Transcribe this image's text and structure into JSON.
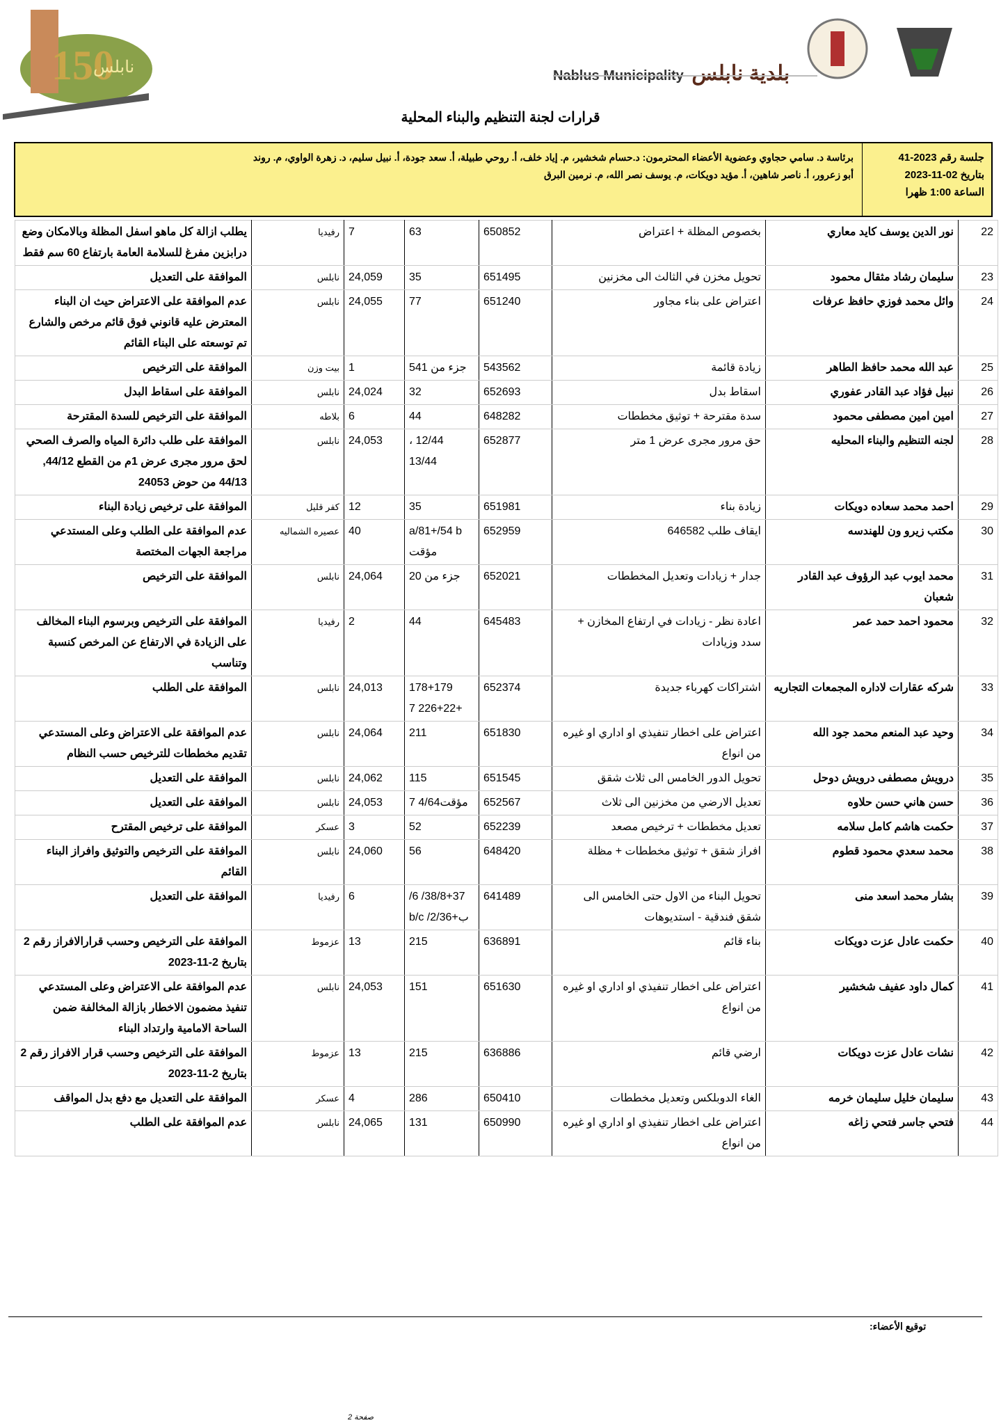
{
  "header": {
    "brand_en": "Nablus Municipality",
    "brand_ar": "بلدية نابلس",
    "logo_text": "150 نابلس",
    "title": "قرارات لجنة التنظيم والبناء المحلية"
  },
  "session": {
    "number": "جلسة رقم 2023-41",
    "date": "بتاريخ 02-11-2023",
    "time": "الساعة 1:00 ظهرا",
    "members_line1": "برئاسة د. سامي حجاوي وعضوية الأعضاء المحترمون: د.حسام شخشير، م. إياد خلف، أ. روحي طبيلة، أ. سعد جودة، أ. نبيل سليم، د. زهرة الواوي، م. روند",
    "members_line2": "أبو زعرور، أ. ناصر شاهين، أ. مؤيد دويكات، م. يوسف نصر الله، م. نرمين البرق"
  },
  "rows": [
    [
      "22",
      "نور الدين يوسف كايد معاري",
      "بخصوص المظلة + اعتراض",
      "650852",
      "63",
      "7",
      "رفيديا",
      "يطلب ازالة كل ماهو اسفل المظلة وبالامكان وضع درابزين مفرغ للسلامة العامة بارتفاع 60 سم فقط"
    ],
    [
      "23",
      "سليمان رشاد مثقال محمود",
      "تحويل مخزن في الثالث الى مخزنين",
      "651495",
      "35",
      "24,059",
      "نابلس",
      "الموافقة على التعديل"
    ],
    [
      "24",
      "وائل محمد فوزي حافظ عرفات",
      "اعتراض على بناء مجاور",
      "651240",
      "77",
      "24,055",
      "نابلس",
      "عدم الموافقة على الاعتراض حيث ان البناء المعترض عليه قانوني فوق قائم مرخص والشارع تم توسعته على البناء القائم"
    ],
    [
      "25",
      "عبد الله محمد حافظ الطاهر",
      "زيادة قائمة",
      "543562",
      "جزء من 541",
      "1",
      "بيت وزن",
      "الموافقة على الترخيص"
    ],
    [
      "26",
      "نبيل فؤاد عبد القادر عفوري",
      "اسقاط بدل",
      "652693",
      "32",
      "24,024",
      "نابلس",
      "الموافقة على اسقاط البدل"
    ],
    [
      "27",
      "امين امين مصطفى محمود",
      "سدة مقترحة + توثيق مخططات",
      "648282",
      "44",
      "6",
      "بلاطه",
      "الموافقة على الترخيص للسدة المقترحة"
    ],
    [
      "28",
      "لجنه التنظيم والبناء المحليه",
      "حق مرور مجرى عرض 1 متر",
      "652877",
      "12/44 ، 13/44",
      "24,053",
      "نابلس",
      "الموافقة على طلب دائرة المياه والصرف الصحي لحق مرور مجرى عرض 1م من القطع 44/12, 44/13 من حوض 24053"
    ],
    [
      "29",
      "احمد محمد سعاده دويكات",
      "زيادة بناء",
      "651981",
      "35",
      "12",
      "كفر قليل",
      "الموافقة على ترخيص زيادة البناء"
    ],
    [
      "30",
      "مكتب زيرو ون للهندسه",
      "ايقاف طلب 646582",
      "652959",
      "a/81+/54 b مؤقت",
      "40",
      "عصيره الشماليه",
      "عدم الموافقة على الطلب وعلى المستدعي مراجعة الجهات المختصة"
    ],
    [
      "31",
      "محمد ايوب عبد الرؤوف عبد القادر شعبان",
      "جدار + زيادات وتعديل المخططات",
      "652021",
      "جزء من 20",
      "24,064",
      "نابلس",
      "الموافقة على الترخيص"
    ],
    [
      "32",
      "محمود احمد حمد عمر",
      "اعادة نظر - زيادات في ارتفاع المخازن + سدد وزيادات",
      "645483",
      "44",
      "2",
      "رفيديا",
      "الموافقة على الترخيص وبرسوم البناء المخالف على الزيادة في الارتفاع عن المرخص كنسبة وتناسب"
    ],
    [
      "33",
      "شركه عقارات لاداره المجمعات التجاريه",
      "اشتراكات كهرباء جديدة",
      "652374",
      "178+179 +226+22 7",
      "24,013",
      "نابلس",
      "الموافقة على الطلب"
    ],
    [
      "34",
      "وحيد عبد المنعم محمد جود الله",
      "اعتراض على اخطار تنفيذي او اداري او غيره من انواع",
      "651830",
      "211",
      "24,064",
      "نابلس",
      "عدم الموافقة على الاعتراض وعلى المستدعي تقديم مخططات للترخيص حسب النظام"
    ],
    [
      "35",
      "درويش مصطفى درويش دوحل",
      "تحويل الدور الخامس الى ثلاث شقق",
      "651545",
      "115",
      "24,062",
      "نابلس",
      "الموافقة على التعديل"
    ],
    [
      "36",
      "حسن هاني حسن حلاوه",
      "تعديل الارضي من مخزنين الى ثلاث",
      "652567",
      "مؤقت4/64 7",
      "24,053",
      "نابلس",
      "الموافقة على التعديل"
    ],
    [
      "37",
      "حكمت هاشم كامل سلامه",
      "تعديل مخططات + ترخيص مصعد",
      "652239",
      "52",
      "3",
      "عسكر",
      "الموافقة على ترخيص المقترح"
    ],
    [
      "38",
      "محمد سعدي محمود قطوم",
      "افراز شقق + توثيق مخططات + مظلة",
      "648420",
      "56",
      "24,060",
      "نابلس",
      "الموافقة على الترخيص والتوثيق وافراز البناء القائم"
    ],
    [
      "39",
      "بشار محمد اسعد منى",
      "تحويل البناء من الاول حتى الخامس الى شقق فندقية - استديوهات",
      "641489",
      "38/8+37/ 6/ ب+2/36/ b/c",
      "6",
      "رفيديا",
      "الموافقة على التعديل"
    ],
    [
      "40",
      "حكمت عادل عزت دويكات",
      "بناء قائم",
      "636891",
      "215",
      "13",
      "عزموط",
      "الموافقة على الترخيص وحسب قرارالافراز رقم 2 بتاريخ 2-11-2023"
    ],
    [
      "41",
      "كمال داود عفيف شخشير",
      "اعتراض على اخطار تنفيذي او اداري او غيره من انواع",
      "651630",
      "151",
      "24,053",
      "نابلس",
      "عدم الموافقة على الاعتراض وعلى المستدعي تنفيذ مضمون الاخطار بازالة المخالفة ضمن الساحة الامامية وارتداد البناء"
    ],
    [
      "42",
      "نشات عادل عزت دويكات",
      "ارضي قائم",
      "636886",
      "215",
      "13",
      "عزموط",
      "الموافقة على الترخيص وحسب قرار الافراز رقم 2 بتاريخ 2-11-2023"
    ],
    [
      "43",
      "سليمان خليل سليمان خرمه",
      "الغاء الدوبلكس وتعديل مخططات",
      "650410",
      "286",
      "4",
      "عسكر",
      "الموافقة على التعديل مع دفع بدل المواقف"
    ],
    [
      "44",
      "فتحي جاسر فتحي زاغه",
      "اعتراض على اخطار تنفيذي او اداري او غيره من انواع",
      "650990",
      "131",
      "24,065",
      "نابلس",
      "عدم الموافقة على الطلب"
    ]
  ],
  "footer": {
    "signature_label": "توقيع الأعضاء:",
    "page": "صفحة 2"
  },
  "colors": {
    "header_box": "#fbf08e"
  }
}
